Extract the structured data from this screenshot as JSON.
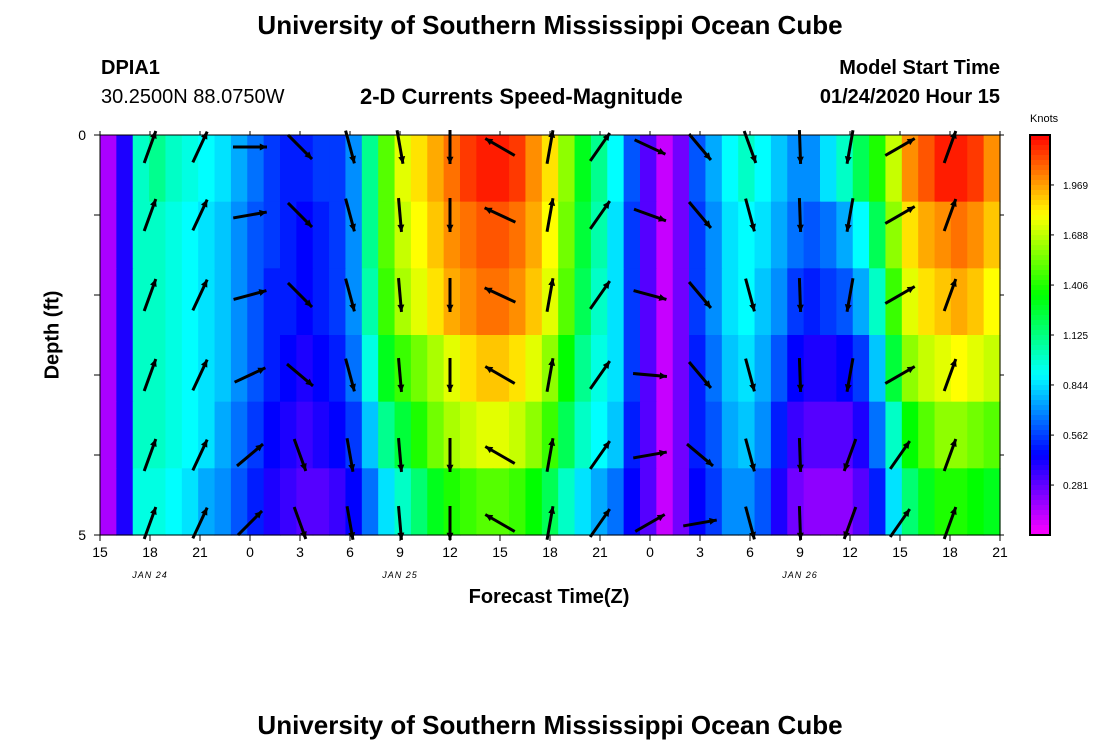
{
  "title_top": "University of Southern Mississippi Ocean Cube",
  "title_bottom": "University of Southern Mississippi Ocean Cube",
  "station": {
    "id": "DPIA1",
    "coords": "30.2500N 88.0750W"
  },
  "plot_title": "2-D Currents Speed-Magnitude",
  "model_start": {
    "label": "Model Start Time",
    "value": "01/24/2020 Hour 15"
  },
  "chart_data": {
    "type": "heatmap",
    "title": "2-D Currents Speed-Magnitude",
    "xlabel": "Forecast Time(Z)",
    "ylabel": "Depth (ft)",
    "ylim": [
      0,
      5
    ],
    "x_tick_labels": [
      "15",
      "18",
      "21",
      "0",
      "3",
      "6",
      "9",
      "12",
      "15",
      "18",
      "21",
      "0",
      "3",
      "6",
      "9",
      "12",
      "15",
      "18",
      "21"
    ],
    "y_tick_labels": [
      "0",
      "5"
    ],
    "date_labels": [
      {
        "text": "JAN 24",
        "x_hours": 3
      },
      {
        "text": "JAN 25",
        "x_hours": 18
      },
      {
        "text": "JAN 26",
        "x_hours": 42
      }
    ],
    "x_range_hours": [
      0,
      54
    ],
    "colorbar": {
      "unit": "Knots",
      "range": [
        0,
        2.25
      ],
      "ticks": [
        "1.969",
        "1.688",
        "1.406",
        "1.125",
        "0.844",
        "0.562",
        "0.281"
      ]
    },
    "depth_rows": [
      0,
      1,
      2,
      3,
      4,
      5
    ],
    "time_hours": [
      0,
      1,
      2,
      3,
      4,
      5,
      6,
      7,
      8,
      9,
      10,
      11,
      12,
      13,
      14,
      15,
      16,
      17,
      18,
      19,
      20,
      21,
      22,
      23,
      24,
      25,
      26,
      27,
      28,
      29,
      30,
      31,
      32,
      33,
      34,
      35,
      36,
      37,
      38,
      39,
      40,
      41,
      42,
      43,
      44,
      45,
      46,
      47,
      48,
      49,
      50,
      51,
      52,
      53,
      54
    ],
    "speed_knots": [
      [
        0.15,
        0.4,
        1.0,
        1.1,
        1.0,
        0.95,
        0.9,
        0.85,
        0.75,
        0.65,
        0.55,
        0.5,
        0.5,
        0.55,
        0.55,
        0.7,
        1.1,
        1.5,
        1.75,
        1.85,
        1.95,
        2.05,
        2.15,
        2.2,
        2.2,
        2.15,
        2.0,
        1.85,
        1.6,
        1.3,
        1.1,
        0.9,
        0.6,
        0.3,
        0.1,
        0.25,
        0.6,
        0.75,
        0.9,
        1.0,
        0.9,
        0.8,
        0.7,
        0.7,
        0.85,
        1.0,
        1.2,
        1.4,
        1.7,
        2.0,
        2.1,
        2.2,
        2.2,
        2.15,
        2.0
      ],
      [
        0.15,
        0.4,
        1.0,
        1.0,
        0.95,
        0.9,
        0.85,
        0.8,
        0.7,
        0.6,
        0.55,
        0.5,
        0.45,
        0.5,
        0.55,
        0.7,
        1.1,
        1.5,
        1.7,
        1.8,
        1.9,
        2.0,
        2.05,
        2.1,
        2.1,
        2.05,
        1.95,
        1.8,
        1.55,
        1.25,
        1.05,
        0.85,
        0.55,
        0.3,
        0.1,
        0.25,
        0.55,
        0.7,
        0.85,
        0.9,
        0.85,
        0.75,
        0.65,
        0.6,
        0.65,
        0.75,
        0.9,
        1.2,
        1.6,
        1.85,
        1.95,
        2.0,
        2.05,
        2.0,
        1.9
      ],
      [
        0.15,
        0.4,
        1.0,
        1.0,
        0.95,
        0.9,
        0.85,
        0.8,
        0.7,
        0.6,
        0.5,
        0.5,
        0.45,
        0.5,
        0.55,
        0.7,
        1.05,
        1.45,
        1.65,
        1.75,
        1.85,
        1.95,
        2.0,
        2.05,
        2.05,
        2.0,
        1.9,
        1.75,
        1.5,
        1.2,
        1.0,
        0.85,
        0.55,
        0.3,
        0.1,
        0.25,
        0.55,
        0.7,
        0.85,
        0.9,
        0.8,
        0.7,
        0.55,
        0.5,
        0.55,
        0.6,
        0.75,
        1.0,
        1.45,
        1.75,
        1.85,
        1.9,
        1.95,
        1.9,
        1.8
      ],
      [
        0.15,
        0.4,
        1.0,
        1.0,
        0.95,
        0.9,
        0.85,
        0.8,
        0.7,
        0.6,
        0.5,
        0.45,
        0.4,
        0.45,
        0.5,
        0.65,
        0.95,
        1.3,
        1.45,
        1.55,
        1.65,
        1.75,
        1.85,
        1.9,
        1.9,
        1.85,
        1.75,
        1.6,
        1.35,
        1.1,
        0.95,
        0.85,
        0.55,
        0.3,
        0.1,
        0.25,
        0.5,
        0.65,
        0.8,
        0.85,
        0.75,
        0.6,
        0.45,
        0.4,
        0.4,
        0.45,
        0.55,
        0.8,
        1.25,
        1.6,
        1.7,
        1.75,
        1.8,
        1.75,
        1.7
      ],
      [
        0.15,
        0.4,
        1.0,
        1.0,
        0.95,
        0.9,
        0.85,
        0.75,
        0.65,
        0.55,
        0.45,
        0.4,
        0.35,
        0.4,
        0.45,
        0.55,
        0.8,
        1.1,
        1.25,
        1.4,
        1.55,
        1.65,
        1.7,
        1.75,
        1.75,
        1.7,
        1.6,
        1.45,
        1.2,
        1.0,
        0.9,
        0.8,
        0.5,
        0.3,
        0.1,
        0.25,
        0.5,
        0.6,
        0.75,
        0.8,
        0.7,
        0.5,
        0.35,
        0.3,
        0.3,
        0.3,
        0.4,
        0.65,
        1.0,
        1.35,
        1.5,
        1.6,
        1.6,
        1.55,
        1.5
      ],
      [
        0.15,
        0.4,
        0.95,
        0.95,
        0.9,
        0.85,
        0.75,
        0.7,
        0.6,
        0.5,
        0.4,
        0.35,
        0.3,
        0.3,
        0.35,
        0.45,
        0.65,
        0.85,
        1.0,
        1.15,
        1.3,
        1.4,
        1.45,
        1.5,
        1.5,
        1.45,
        1.35,
        1.2,
        1.0,
        0.85,
        0.75,
        0.65,
        0.45,
        0.3,
        0.1,
        0.25,
        0.45,
        0.55,
        0.7,
        0.7,
        0.6,
        0.4,
        0.25,
        0.2,
        0.2,
        0.2,
        0.3,
        0.5,
        0.85,
        1.15,
        1.3,
        1.4,
        1.4,
        1.35,
        1.3
      ]
    ],
    "arrows": [
      {
        "t": 3,
        "dirs_deg": [
          20,
          20,
          20,
          20,
          20,
          20
        ]
      },
      {
        "t": 6,
        "dirs_deg": [
          25,
          25,
          25,
          25,
          25,
          25
        ]
      },
      {
        "t": 9,
        "dirs_deg": [
          90,
          80,
          75,
          65,
          50,
          45
        ]
      },
      {
        "t": 12,
        "dirs_deg": [
          135,
          135,
          135,
          130,
          160,
          160
        ]
      },
      {
        "t": 15,
        "dirs_deg": [
          165,
          165,
          165,
          165,
          170,
          170
        ]
      },
      {
        "t": 18,
        "dirs_deg": [
          170,
          175,
          175,
          175,
          175,
          175
        ]
      },
      {
        "t": 21,
        "dirs_deg": [
          180,
          180,
          180,
          180,
          180,
          180
        ]
      },
      {
        "t": 24,
        "dirs_deg": [
          300,
          295,
          295,
          300,
          300,
          300
        ]
      },
      {
        "t": 27,
        "dirs_deg": [
          10,
          10,
          10,
          10,
          10,
          10
        ]
      },
      {
        "t": 30,
        "dirs_deg": [
          35,
          35,
          35,
          35,
          35,
          35
        ]
      },
      {
        "t": 33,
        "dirs_deg": [
          115,
          110,
          105,
          95,
          80,
          60
        ]
      },
      {
        "t": 36,
        "dirs_deg": [
          140,
          140,
          140,
          140,
          130,
          80
        ]
      },
      {
        "t": 39,
        "dirs_deg": [
          160,
          165,
          165,
          165,
          165,
          165
        ]
      },
      {
        "t": 42,
        "dirs_deg": [
          178,
          178,
          178,
          178,
          178,
          178
        ]
      },
      {
        "t": 45,
        "dirs_deg": [
          190,
          190,
          190,
          190,
          200,
          200
        ]
      },
      {
        "t": 48,
        "dirs_deg": [
          60,
          60,
          60,
          60,
          35,
          35
        ]
      },
      {
        "t": 51,
        "dirs_deg": [
          20,
          20,
          20,
          20,
          20,
          20
        ]
      }
    ]
  }
}
